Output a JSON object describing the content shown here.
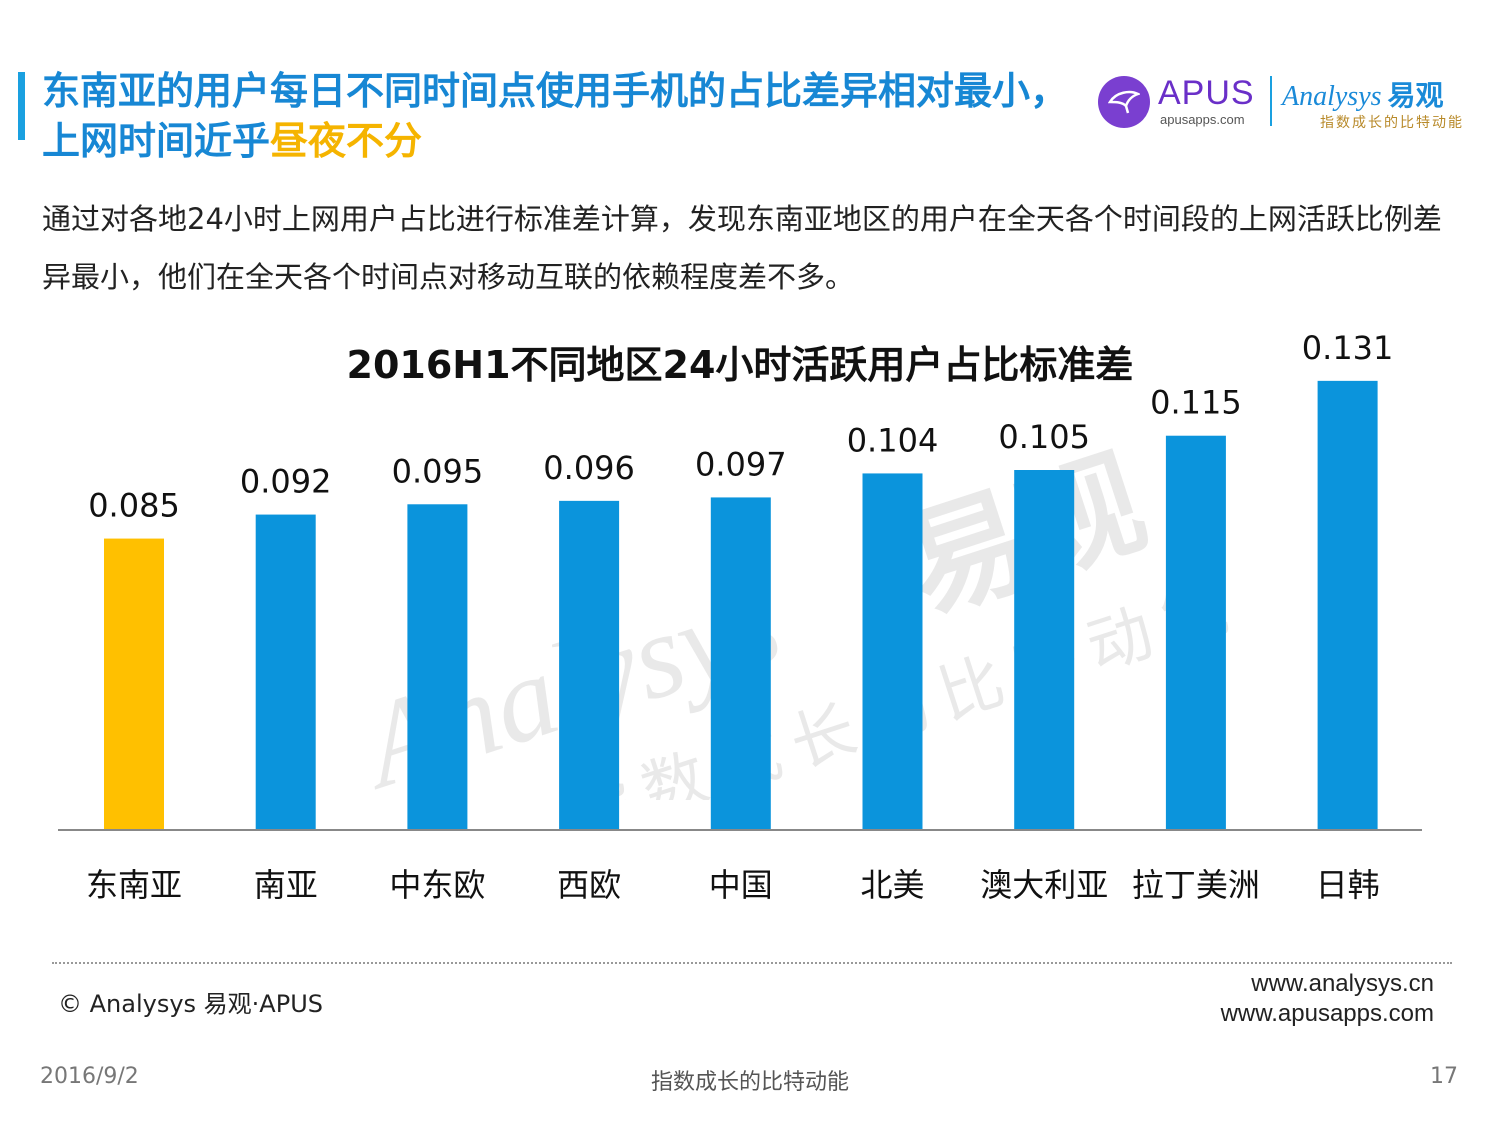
{
  "header": {
    "title_main": "东南亚的用户每日不同时间点使用手机的占比差异相对最小，上网时间近乎",
    "title_highlight": "昼夜不分",
    "apus_logo": {
      "name": "APUS",
      "url": "apusapps.com",
      "icon": "apus-bird-icon"
    },
    "analysys_logo": {
      "name": "Analysys",
      "name_cn": "易观",
      "slogan": "指数成长的比特动能"
    }
  },
  "description": "通过对各地24小时上网用户占比进行标准差计算，发现东南亚地区的用户在全天各个时间段的上网活跃比例差异最小，他们在全天各个时间点对移动互联的依赖程度差不多。",
  "chart_data": {
    "type": "bar",
    "title": "2016H1不同地区24小时活跃用户占比标准差",
    "categories": [
      "东南亚",
      "南亚",
      "中东欧",
      "西欧",
      "中国",
      "北美",
      "澳大利亚",
      "拉丁美洲",
      "日韩"
    ],
    "values": [
      0.085,
      0.092,
      0.095,
      0.096,
      0.097,
      0.104,
      0.105,
      0.115,
      0.131
    ],
    "value_labels": [
      "0.085",
      "0.092",
      "0.095",
      "0.096",
      "0.097",
      "0.104",
      "0.105",
      "0.115",
      "0.131"
    ],
    "highlight_index": 0,
    "highlight_color": "#ffc000",
    "bar_color": "#0b94dc",
    "xlabel": "",
    "ylabel": "",
    "ylim": [
      0,
      0.14
    ],
    "grid": false,
    "legend": "none"
  },
  "watermark": {
    "name": "Analysys",
    "name_cn": "易观",
    "slogan": "指数成长的比特动能"
  },
  "footer": {
    "copyright": "© Analysys 易观·APUS",
    "url1": "www.analysys.cn",
    "url2": "www.apusapps.com",
    "date": "2016/9/2",
    "slogan": "指数成长的比特动能",
    "page_number": "17"
  }
}
